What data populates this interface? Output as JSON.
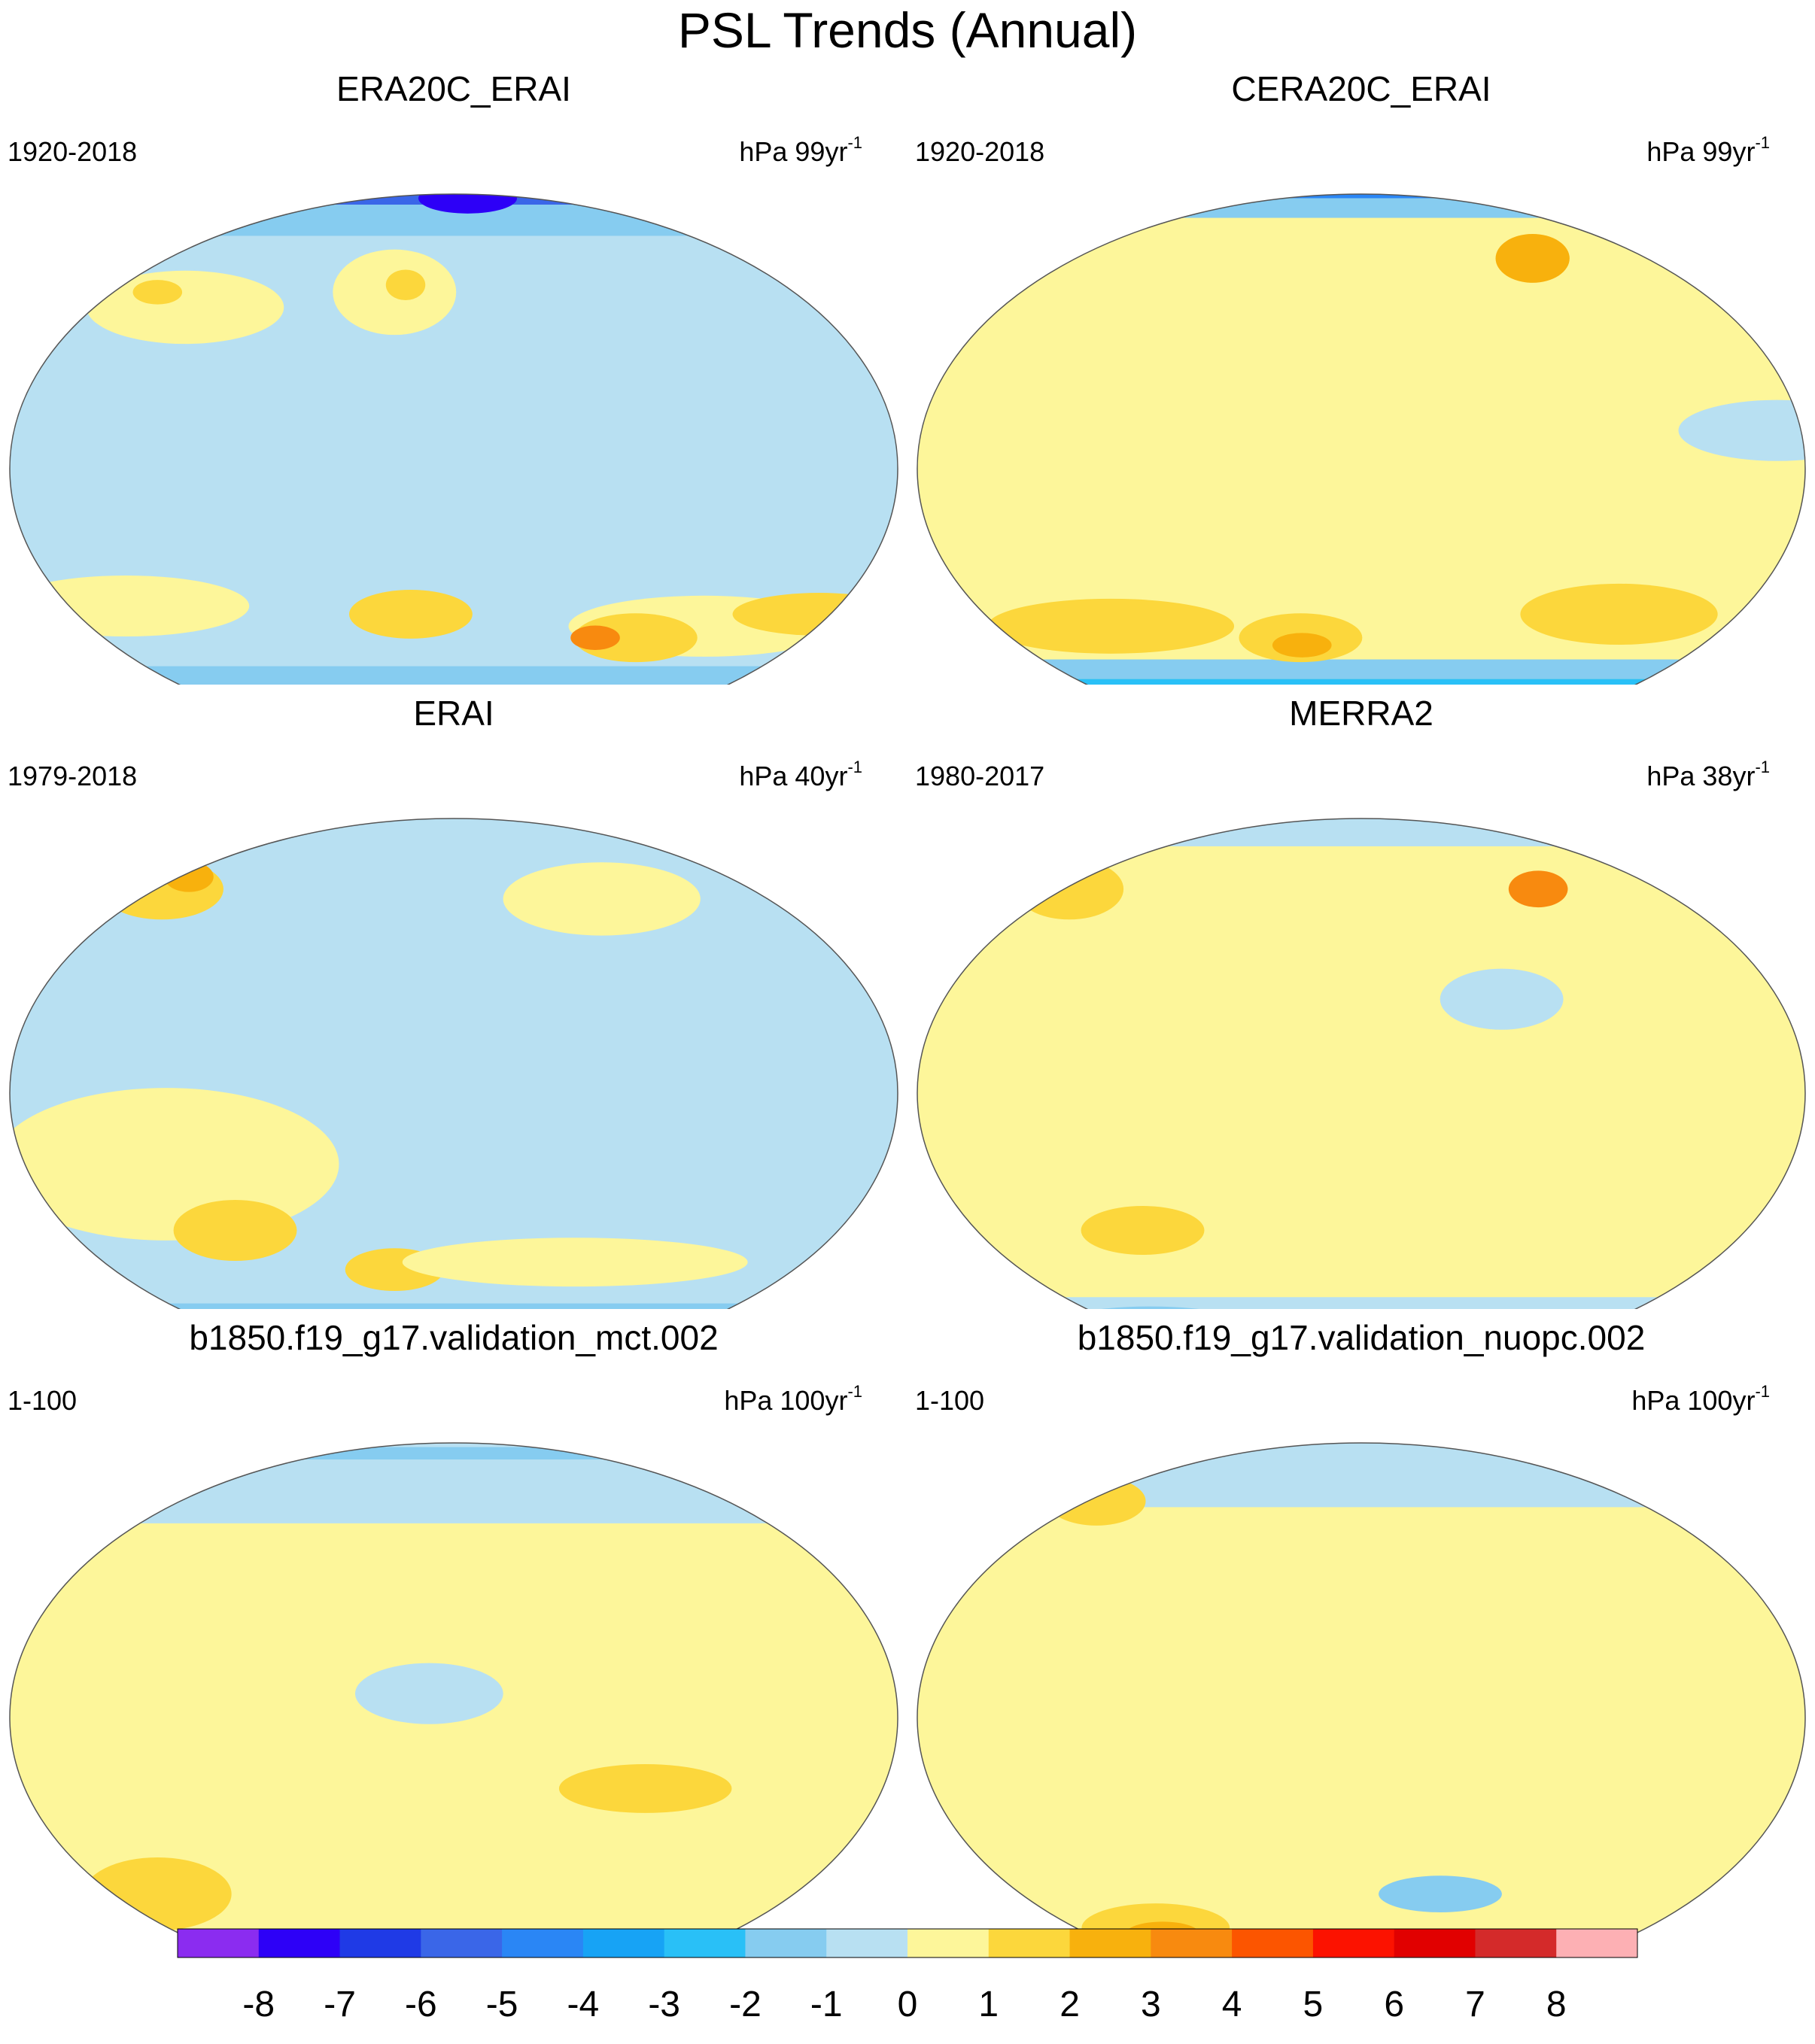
{
  "title": "PSL Trends (Annual)",
  "colorbar": {
    "labels": [
      "-8",
      "-7",
      "-6",
      "-5",
      "-4",
      "-3",
      "-2",
      "-1",
      "0",
      "1",
      "2",
      "3",
      "4",
      "5",
      "6",
      "7",
      "8"
    ],
    "colors": [
      "#8b2cf0",
      "#2d00f7",
      "#1f3ae6",
      "#3a66e8",
      "#2a86f5",
      "#17a3f5",
      "#29c0f7",
      "#86ccf0",
      "#b8e0f2",
      "#fdf69a",
      "#fcd73c",
      "#f8b10d",
      "#f88a0f",
      "#fc5500",
      "#fc1200",
      "#e10000",
      "#d42a2a",
      "#fdb0b4"
    ]
  },
  "panels": [
    {
      "title": "ERA20C_ERAI",
      "period": "1920-2018",
      "units_pre": "hPa 99yr",
      "units_exp": "-1"
    },
    {
      "title": "CERA20C_ERAI",
      "period": "1920-2018",
      "units_pre": "hPa 99yr",
      "units_exp": "-1"
    },
    {
      "title": "ERAI",
      "period": "1979-2018",
      "units_pre": "hPa 40yr",
      "units_exp": "-1"
    },
    {
      "title": "MERRA2",
      "period": "1980-2017",
      "units_pre": "hPa 38yr",
      "units_exp": "-1"
    },
    {
      "title": "b1850.f19_g17.validation_mct.002",
      "period": "1-100",
      "units_pre": "hPa 100yr",
      "units_exp": "-1"
    },
    {
      "title": "b1850.f19_g17.validation_nuopc.002",
      "period": "1-100",
      "units_pre": "hPa 100yr",
      "units_exp": "-1"
    }
  ],
  "map_fields": [
    {
      "base": "#b8e0f2",
      "bands": [
        {
          "lat0": 86,
          "lat1": 90,
          "c": "#2a86f5"
        },
        {
          "lat0": 74,
          "lat1": 86,
          "c": "#3a66e8"
        },
        {
          "lat0": 58,
          "lat1": 74,
          "c": "#86ccf0"
        },
        {
          "lat0": -52,
          "lat1": -46,
          "c": "#86ccf0"
        },
        {
          "lat0": -58,
          "lat1": -52,
          "c": "#29c0f7"
        },
        {
          "lat0": -62,
          "lat1": -58,
          "c": "#2a86f5"
        },
        {
          "lat0": -66,
          "lat1": -62,
          "c": "#1f3ae6"
        },
        {
          "lat0": -90,
          "lat1": -66,
          "c": "#8b2cf0"
        }
      ],
      "blobs": [
        {
          "lon": 20,
          "lat": 80,
          "rx": 20,
          "ry": 5,
          "c": "#2d00f7"
        },
        {
          "lon": -130,
          "lat": 36,
          "rx": 40,
          "ry": 12,
          "c": "#fdf69a"
        },
        {
          "lon": -150,
          "lat": 40,
          "rx": 10,
          "ry": 4,
          "c": "#fcd73c"
        },
        {
          "lon": -30,
          "lat": 40,
          "rx": 25,
          "ry": 14,
          "c": "#fdf69a"
        },
        {
          "lon": -25,
          "lat": 42,
          "rx": 8,
          "ry": 5,
          "c": "#fcd73c"
        },
        {
          "lon": 120,
          "lat": -35,
          "rx": 55,
          "ry": 10,
          "c": "#fdf69a"
        },
        {
          "lon": 90,
          "lat": -38,
          "rx": 25,
          "ry": 8,
          "c": "#fcd73c"
        },
        {
          "lon": 70,
          "lat": -38,
          "rx": 10,
          "ry": 4,
          "c": "#f88a0f"
        },
        {
          "lon": 170,
          "lat": -32,
          "rx": 35,
          "ry": 7,
          "c": "#fcd73c"
        },
        {
          "lon": -150,
          "lat": -30,
          "rx": 50,
          "ry": 10,
          "c": "#fdf69a"
        },
        {
          "lon": -20,
          "lat": -32,
          "rx": 25,
          "ry": 8,
          "c": "#fcd73c"
        }
      ]
    },
    {
      "base": "#fdf69a",
      "bands": [
        {
          "lat0": 80,
          "lat1": 90,
          "c": "#2a86f5"
        },
        {
          "lat0": 66,
          "lat1": 80,
          "c": "#86ccf0"
        },
        {
          "lat0": -50,
          "lat1": -44,
          "c": "#86ccf0"
        },
        {
          "lat0": -56,
          "lat1": -50,
          "c": "#29c0f7"
        },
        {
          "lat0": -62,
          "lat1": -56,
          "c": "#1f3ae6"
        },
        {
          "lat0": -90,
          "lat1": -62,
          "c": "#2d00f7"
        }
      ],
      "blobs": [
        {
          "lon": 100,
          "lat": 50,
          "rx": 15,
          "ry": 8,
          "c": "#f8b10d"
        },
        {
          "lon": 170,
          "lat": 8,
          "rx": 40,
          "ry": 10,
          "c": "#b8e0f2"
        },
        {
          "lon": 120,
          "lat": -32,
          "rx": 40,
          "ry": 10,
          "c": "#fcd73c"
        },
        {
          "lon": -120,
          "lat": -35,
          "rx": 50,
          "ry": 9,
          "c": "#fcd73c"
        },
        {
          "lon": -30,
          "lat": -38,
          "rx": 25,
          "ry": 8,
          "c": "#fcd73c"
        },
        {
          "lon": -30,
          "lat": -40,
          "rx": 12,
          "ry": 4,
          "c": "#f8b10d"
        },
        {
          "lon": -110,
          "lat": -72,
          "rx": 20,
          "ry": 4,
          "c": "#8b2cf0"
        }
      ]
    },
    {
      "base": "#b8e0f2",
      "bands": [
        {
          "lat0": -62,
          "lat1": -50,
          "c": "#86ccf0"
        }
      ],
      "blobs": [
        {
          "lon": -165,
          "lat": 48,
          "rx": 25,
          "ry": 10,
          "c": "#fcd73c"
        },
        {
          "lon": -160,
          "lat": 52,
          "rx": 10,
          "ry": 5,
          "c": "#f8b10d"
        },
        {
          "lon": 80,
          "lat": 45,
          "rx": 40,
          "ry": 12,
          "c": "#fdf69a"
        },
        {
          "lon": -120,
          "lat": -15,
          "rx": 70,
          "ry": 25,
          "c": "#fdf69a"
        },
        {
          "lon": -100,
          "lat": -30,
          "rx": 25,
          "ry": 10,
          "c": "#fcd73c"
        },
        {
          "lon": -30,
          "lat": -40,
          "rx": 20,
          "ry": 7,
          "c": "#fcd73c"
        },
        {
          "lon": 60,
          "lat": -38,
          "rx": 70,
          "ry": 8,
          "c": "#fdf69a"
        },
        {
          "lon": 100,
          "lat": -60,
          "rx": 20,
          "ry": 5,
          "c": "#2a86f5"
        },
        {
          "lon": -120,
          "lat": -62,
          "rx": 25,
          "ry": 5,
          "c": "#2a86f5"
        }
      ]
    },
    {
      "base": "#fdf69a",
      "bands": [
        {
          "lat0": 64,
          "lat1": 90,
          "c": "#b8e0f2"
        },
        {
          "lat0": -90,
          "lat1": -48,
          "c": "#b8e0f2"
        }
      ],
      "blobs": [
        {
          "lon": -165,
          "lat": 48,
          "rx": 22,
          "ry": 10,
          "c": "#fcd73c"
        },
        {
          "lon": 100,
          "lat": 48,
          "rx": 12,
          "ry": 6,
          "c": "#f88a0f"
        },
        {
          "lon": 60,
          "lat": 20,
          "rx": 25,
          "ry": 10,
          "c": "#b8e0f2"
        },
        {
          "lon": -100,
          "lat": -30,
          "rx": 25,
          "ry": 8,
          "c": "#fcd73c"
        },
        {
          "lon": -150,
          "lat": -60,
          "rx": 45,
          "ry": 8,
          "c": "#86ccf0"
        },
        {
          "lon": -150,
          "lat": -62,
          "rx": 20,
          "ry": 4,
          "c": "#2a86f5"
        }
      ]
    },
    {
      "base": "#fdf69a",
      "bands": [
        {
          "lat0": 45,
          "lat1": 90,
          "c": "#b8e0f2"
        },
        {
          "lat0": 70,
          "lat1": 80,
          "c": "#86ccf0"
        },
        {
          "lat0": -90,
          "lat1": -55,
          "c": "#b8e0f2"
        }
      ],
      "blobs": [
        {
          "lon": 80,
          "lat": -15,
          "rx": 35,
          "ry": 8,
          "c": "#fcd73c"
        },
        {
          "lon": -150,
          "lat": -40,
          "rx": 30,
          "ry": 12,
          "c": "#fcd73c"
        },
        {
          "lon": -10,
          "lat": 5,
          "rx": 30,
          "ry": 10,
          "c": "#b8e0f2"
        }
      ]
    },
    {
      "base": "#fdf69a",
      "bands": [
        {
          "lat0": 50,
          "lat1": 90,
          "c": "#b8e0f2"
        },
        {
          "lat0": -90,
          "lat1": -60,
          "c": "#b8e0f2"
        }
      ],
      "blobs": [
        {
          "lon": -160,
          "lat": 52,
          "rx": 20,
          "ry": 8,
          "c": "#fcd73c"
        },
        {
          "lon": -120,
          "lat": -50,
          "rx": 30,
          "ry": 8,
          "c": "#fcd73c"
        },
        {
          "lon": -120,
          "lat": -52,
          "rx": 15,
          "ry": 4,
          "c": "#f8b10d"
        },
        {
          "lon": 40,
          "lat": -40,
          "rx": 25,
          "ry": 6,
          "c": "#86ccf0"
        }
      ]
    }
  ]
}
